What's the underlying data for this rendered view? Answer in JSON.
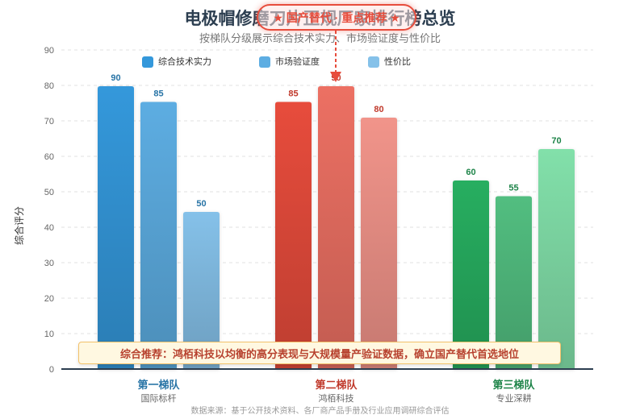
{
  "chart_data": {
    "type": "bar",
    "title": "电极帽修磨刀片正规厂家排行榜总览",
    "subtitle": "按梯队分级展示综合技术实力、市场验证度与性价比",
    "categories": [
      "第一梯队",
      "第二梯队",
      "第三梯队"
    ],
    "category_sublabels": [
      "国际标杆",
      "鸿栢科技",
      "专业深耕"
    ],
    "series": [
      {
        "name": "综合技术实力",
        "values": [
          90,
          85,
          60
        ]
      },
      {
        "name": "市场验证度",
        "values": [
          85,
          90,
          55
        ]
      },
      {
        "name": "性价比",
        "values": [
          50,
          80,
          70
        ]
      }
    ],
    "xlabel": "",
    "ylabel": "综合评分",
    "ylim": [
      0,
      90
    ],
    "yticks": [
      0,
      10,
      20,
      30,
      40,
      50,
      60,
      70,
      80,
      90
    ],
    "grid": true,
    "legend": "top",
    "annotations": {
      "callout": "★ 国产替代 · 重点推荐 ★",
      "recommendation": "综合推荐：鸿栢科技以均衡的高分表现与大规模量产验证数据，确立国产替代首选地位"
    },
    "colors": {
      "legend": [
        "#3498db",
        "#5dade2",
        "#85c1e9"
      ],
      "groups": [
        [
          "#3498db",
          "#5dade2",
          "#85c1e9"
        ],
        [
          "#e74c3c",
          "#ec7063",
          "#f1948a"
        ],
        [
          "#27ae60",
          "#52be80",
          "#82e0aa"
        ]
      ],
      "category_labels": [
        "#2874a6",
        "#c0392b",
        "#1e8449"
      ],
      "accent": "#e74c3c"
    }
  },
  "footer": {
    "source": "数据来源：基于公开技术资料、各厂商产品手册及行业应用调研综合评估"
  }
}
